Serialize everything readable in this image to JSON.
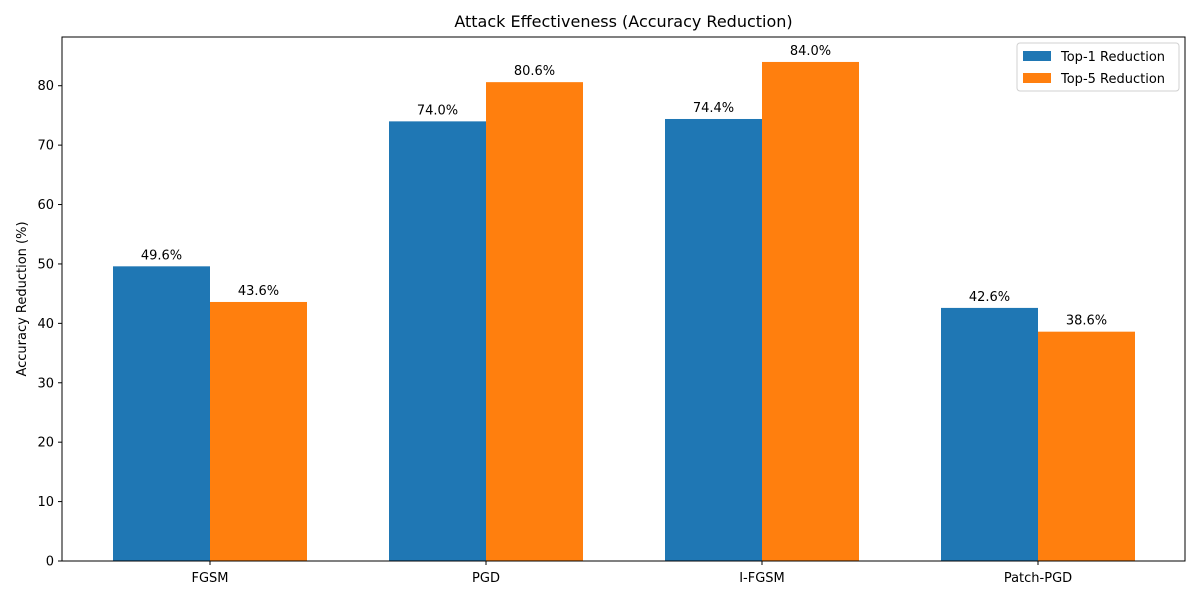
{
  "chart_data": {
    "type": "bar",
    "title": "Attack Effectiveness (Accuracy Reduction)",
    "xlabel": "",
    "ylabel": "Accuracy Reduction (%)",
    "categories": [
      "FGSM",
      "PGD",
      "I-FGSM",
      "Patch-PGD"
    ],
    "series": [
      {
        "name": "Top-1 Reduction",
        "values": [
          49.6,
          74.0,
          74.4,
          42.6
        ],
        "labels": [
          "49.6%",
          "74.0%",
          "74.4%",
          "42.6%"
        ],
        "color": "#1f77b4"
      },
      {
        "name": "Top-5 Reduction",
        "values": [
          43.6,
          80.6,
          84.0,
          38.6
        ],
        "labels": [
          "43.6%",
          "80.6%",
          "84.0%",
          "38.6%"
        ],
        "color": "#ff7f0e"
      }
    ],
    "ylim": [
      0,
      88.2
    ],
    "yticks": [
      0,
      10,
      20,
      30,
      40,
      50,
      60,
      70,
      80
    ],
    "grid": false,
    "legend_position": "top-right"
  }
}
